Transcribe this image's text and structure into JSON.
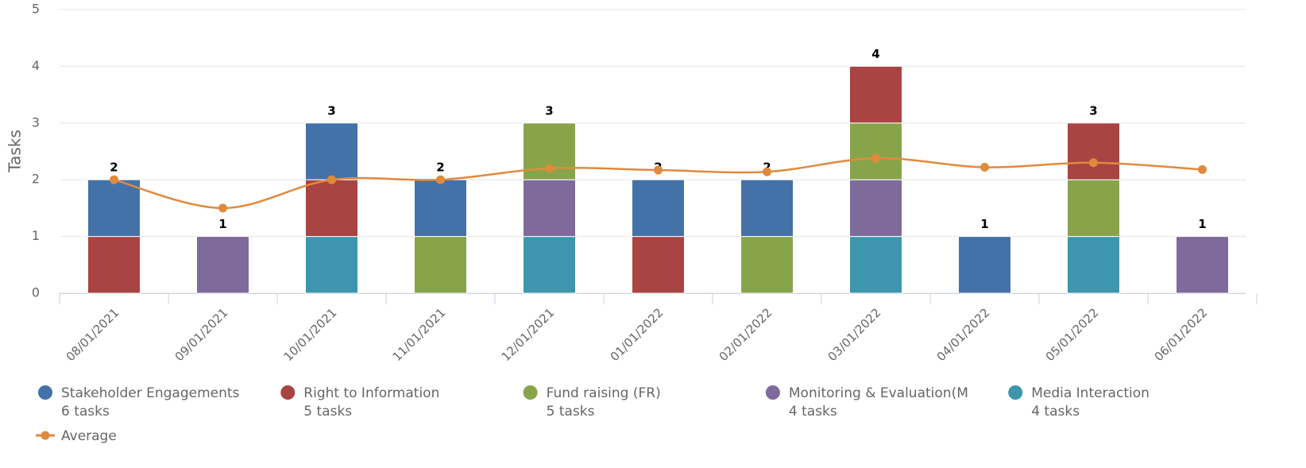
{
  "chart_data": {
    "type": "stacked_bar_line",
    "y_label": "Tasks",
    "categories": [
      "08/01/2021",
      "09/01/2021",
      "10/01/2021",
      "11/01/2021",
      "12/01/2021",
      "01/01/2022",
      "02/01/2022",
      "03/01/2022",
      "04/01/2022",
      "05/01/2022",
      "06/01/2022"
    ],
    "series": [
      {
        "name": "Stakeholder Engagements",
        "task_label": "6 tasks",
        "color": "#4472a8",
        "values": [
          1,
          0,
          1,
          1,
          0,
          1,
          1,
          0,
          1,
          0,
          0
        ]
      },
      {
        "name": "Right to Information",
        "task_label": "5 tasks",
        "color": "#a84442",
        "values": [
          1,
          0,
          1,
          0,
          0,
          1,
          0,
          1,
          0,
          1,
          0
        ]
      },
      {
        "name": "Fund raising (FR)",
        "task_label": "5 tasks",
        "color": "#88a44b",
        "values": [
          0,
          0,
          0,
          1,
          1,
          0,
          1,
          1,
          0,
          1,
          0
        ]
      },
      {
        "name": "Monitoring & Evaluation(M",
        "task_label": "4 tasks",
        "color": "#7f6a9c",
        "values": [
          0,
          1,
          0,
          0,
          1,
          0,
          0,
          1,
          0,
          0,
          1
        ]
      },
      {
        "name": "Media Interaction",
        "task_label": "4 tasks",
        "color": "#3d96ae",
        "values": [
          0,
          0,
          1,
          0,
          1,
          0,
          0,
          1,
          0,
          1,
          0
        ]
      }
    ],
    "totals": [
      2,
      1,
      3,
      2,
      3,
      2,
      2,
      4,
      1,
      3,
      1
    ],
    "line": {
      "name": "Average",
      "color": "#e08a3c",
      "values": [
        2,
        1.5,
        2,
        2,
        2.2,
        2.17,
        2.14,
        2.38,
        2.22,
        2.3,
        2.18
      ]
    },
    "ylim": [
      0,
      5
    ],
    "yticks": [
      0,
      1,
      2,
      3,
      4,
      5
    ],
    "grid": true
  }
}
